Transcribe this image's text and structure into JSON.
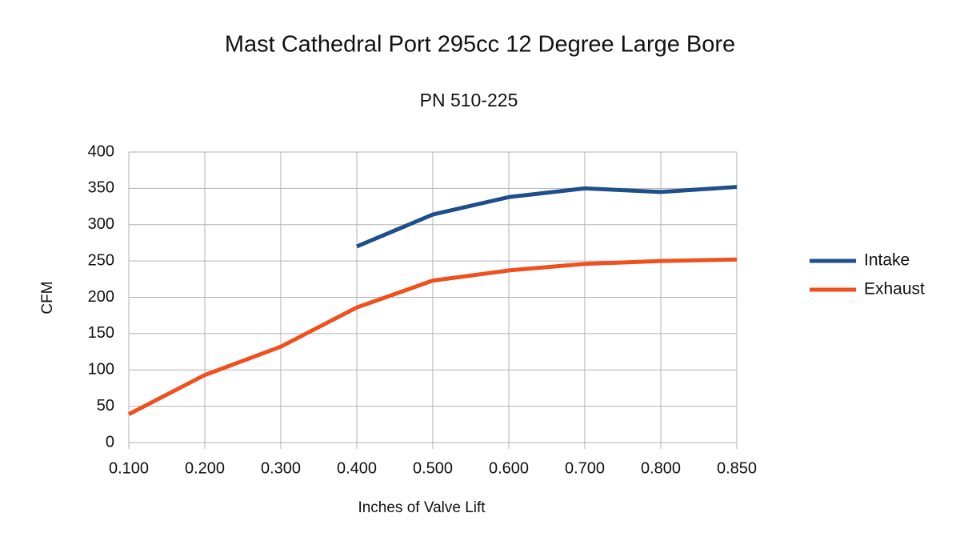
{
  "chart_data": {
    "type": "line",
    "title": "Mast Cathedral Port 295cc 12 Degree Large Bore",
    "subtitle": "PN 510-225",
    "x_label": "Inches of Valve Lift",
    "y_label": "CFM",
    "categories": [
      "0.100",
      "0.200",
      "0.300",
      "0.400",
      "0.500",
      "0.600",
      "0.700",
      "0.800",
      "0.850"
    ],
    "series": [
      {
        "name": "Intake",
        "color": "#1f4e8c",
        "values": [
          null,
          null,
          null,
          270,
          314,
          338,
          350,
          345,
          352
        ]
      },
      {
        "name": "Exhaust",
        "color": "#f0501e",
        "values": [
          39,
          93,
          132,
          186,
          223,
          237,
          246,
          250,
          252
        ]
      }
    ],
    "ylim": [
      0,
      400
    ],
    "yticks": [
      0,
      50,
      100,
      150,
      200,
      250,
      300,
      350,
      400
    ],
    "grid": true,
    "legend": "right"
  }
}
